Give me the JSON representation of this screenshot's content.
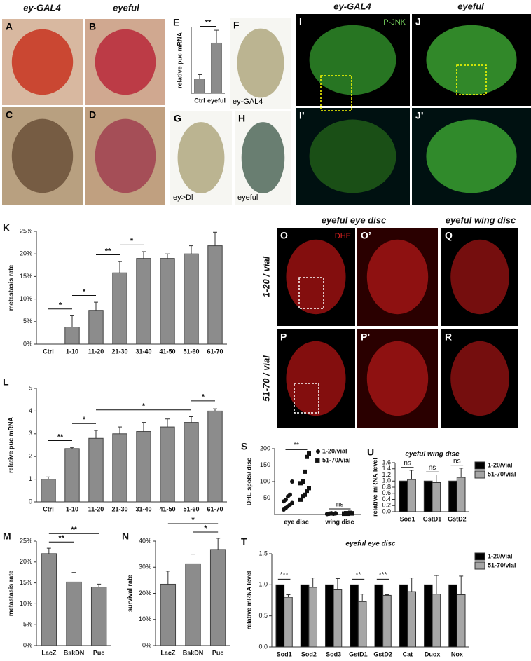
{
  "headers": [
    "ey-GAL4",
    "eyeful",
    "ey-GAL4",
    "eyeful",
    "eyeful eye disc",
    "eyeful wing disc"
  ],
  "row_labels": [
    "1-20 / vial",
    "51-70 / vial"
  ],
  "photo_panels": [
    {
      "label": "A"
    },
    {
      "label": "B"
    },
    {
      "label": "C"
    },
    {
      "label": "D"
    },
    {
      "label": "F",
      "caption": "ey-GAL4"
    },
    {
      "label": "G",
      "caption": "ey>Dl"
    },
    {
      "label": "H",
      "caption": "eyeful"
    },
    {
      "label": "I",
      "caption": "P-JNK"
    },
    {
      "label": "J"
    },
    {
      "label": "I’"
    },
    {
      "label": "J’"
    },
    {
      "label": "O",
      "caption": "DHE"
    },
    {
      "label": "O’"
    },
    {
      "label": "Q"
    },
    {
      "label": "P"
    },
    {
      "label": "P’"
    },
    {
      "label": "R"
    }
  ],
  "chart_data": [
    {
      "type": "bar",
      "label": "E",
      "ylabel": "relative puc mRNA",
      "categories": [
        "Ctrl",
        "eyeful"
      ],
      "values": [
        1,
        3.5
      ],
      "errors": [
        0.3,
        0.9
      ],
      "color": "#8c8c8c",
      "ylim": [
        0,
        4.6
      ],
      "significance": [
        {
          "from": "Ctrl",
          "to": "eyeful",
          "label": "**"
        }
      ]
    },
    {
      "type": "bar",
      "label": "K",
      "ylabel": "metastasis rate",
      "categories": [
        "Ctrl",
        "1-10",
        "11-20",
        "21-30",
        "31-40",
        "41-50",
        "51-60",
        "61-70"
      ],
      "values": [
        0,
        3.8,
        7.5,
        15.8,
        19,
        19,
        20,
        21.8
      ],
      "errors": [
        0,
        2.5,
        1.8,
        2.5,
        1.5,
        1,
        1.8,
        3
      ],
      "color": "#8c8c8c",
      "ylim": [
        0,
        25
      ],
      "yticks": [
        {
          "value": 0,
          "label": "0%"
        },
        {
          "value": 5,
          "label": "5%"
        },
        {
          "value": 10,
          "label": "10%"
        },
        {
          "value": 15,
          "label": "15%"
        },
        {
          "value": 20,
          "label": "20%"
        },
        {
          "value": 25,
          "label": "25%"
        }
      ],
      "significance": [
        {
          "from": "Ctrl",
          "to": "1-10",
          "label": "*"
        },
        {
          "from": "1-10",
          "to": "11-20",
          "label": "*"
        },
        {
          "from": "11-20",
          "to": "21-30",
          "label": "**"
        },
        {
          "from": "21-30",
          "to": "31-40",
          "label": "*"
        }
      ]
    },
    {
      "type": "bar",
      "label": "L",
      "ylabel": "relative puc mRNA",
      "categories": [
        "Ctrl",
        "1-10",
        "11-20",
        "21-30",
        "31-40",
        "41-50",
        "51-60",
        "61-70"
      ],
      "values": [
        1,
        2.35,
        2.8,
        3,
        3.1,
        3.3,
        3.5,
        4
      ],
      "errors": [
        0.1,
        0.05,
        0.35,
        0.3,
        0.4,
        0.35,
        0.25,
        0.1
      ],
      "color": "#8c8c8c",
      "ylim": [
        0,
        5
      ],
      "yticks": [
        0,
        1,
        2,
        3,
        4,
        5
      ],
      "significance": [
        {
          "from": "Ctrl",
          "to": "1-10",
          "label": "**"
        },
        {
          "from": "1-10",
          "to": "11-20",
          "label": "*"
        },
        {
          "from": "11-20",
          "to": "51-60",
          "label": "*"
        },
        {
          "from": "51-60",
          "to": "61-70",
          "label": "*"
        }
      ]
    },
    {
      "type": "bar",
      "label": "M",
      "ylabel": "metastasis rate",
      "categories": [
        "LacZ",
        "BskDN",
        "Puc"
      ],
      "values": [
        22,
        15.2,
        14
      ],
      "errors": [
        1.3,
        2.3,
        0.7
      ],
      "color": "#8c8c8c",
      "ylim": [
        0,
        25
      ],
      "yticks": [
        {
          "value": 0,
          "label": "0%"
        },
        {
          "value": 5,
          "label": "5%"
        },
        {
          "value": 10,
          "label": "10%"
        },
        {
          "value": 15,
          "label": "15%"
        },
        {
          "value": 20,
          "label": "20%"
        },
        {
          "value": 25,
          "label": "25%"
        }
      ],
      "significance": [
        {
          "from": "LacZ",
          "to": "BskDN",
          "label": "**"
        },
        {
          "from": "LacZ",
          "to": "Puc",
          "label": "**"
        }
      ]
    },
    {
      "type": "bar",
      "label": "N",
      "ylabel": "survival rate",
      "categories": [
        "LacZ",
        "BskDN",
        "Puc"
      ],
      "values": [
        23.5,
        31.3,
        36.8
      ],
      "errors": [
        5,
        3.7,
        4.3
      ],
      "color": "#8c8c8c",
      "ylim": [
        0,
        40
      ],
      "yticks": [
        {
          "value": 0,
          "label": "0%"
        },
        {
          "value": 10,
          "label": "10%"
        },
        {
          "value": 20,
          "label": "20%"
        },
        {
          "value": 30,
          "label": "30%"
        },
        {
          "value": 40,
          "label": "40%"
        }
      ],
      "significance": [
        {
          "from": "BskDN",
          "to": "Puc",
          "label": "*"
        },
        {
          "from": "LacZ",
          "to": "Puc",
          "label": "*"
        }
      ]
    },
    {
      "type": "strip",
      "label": "S",
      "ylabel": "DHE spots/ disc",
      "categories": [
        "eye disc",
        "wing disc"
      ],
      "ylim": [
        0,
        200
      ],
      "yticks": [
        50,
        100,
        150,
        200
      ],
      "series": [
        {
          "name": "1-20/vial",
          "color": "#111111",
          "marker": "circle",
          "values": [
            [
              15,
              20,
              25,
              30,
              35,
              40,
              45,
              55,
              60,
              100
            ],
            [
              2,
              3,
              4,
              2,
              3,
              1,
              2,
              3,
              2,
              4
            ]
          ]
        },
        {
          "name": "51-70/vial",
          "color": "#111111",
          "marker": "square",
          "values": [
            [
              45,
              55,
              60,
              70,
              80,
              95,
              100,
              130,
              175,
              185
            ],
            [
              3,
              4,
              2,
              5,
              3,
              2,
              4,
              3,
              5,
              4
            ]
          ]
        }
      ],
      "significance": [
        {
          "category": "eye disc",
          "label": "**"
        },
        {
          "category": "wing disc",
          "label": "ns"
        }
      ]
    },
    {
      "type": "grouped_bar",
      "label": "U",
      "title": "eyeful wing disc",
      "ylabel": "relative mRNA level",
      "categories": [
        "Sod1",
        "GstD1",
        "GstD2"
      ],
      "ylim": [
        0,
        1.6
      ],
      "yticks": [
        {
          "value": 0,
          "label": "0.0"
        },
        {
          "value": 0.2,
          "label": "0.2"
        },
        {
          "value": 0.4,
          "label": "0.4"
        },
        {
          "value": 0.6,
          "label": "0.6"
        },
        {
          "value": 0.8,
          "label": "0.8"
        },
        {
          "value": 1,
          "label": "1.0"
        },
        {
          "value": 1.2,
          "label": "1.2"
        },
        {
          "value": 1.4,
          "label": "1.4"
        },
        {
          "value": 1.6,
          "label": "1.6"
        }
      ],
      "series": [
        {
          "name": "1-20/vial",
          "color": "#000000",
          "values": [
            1,
            1,
            1
          ]
        },
        {
          "name": "51-70/vial",
          "color": "#a6a6a6",
          "values": [
            1.05,
            0.95,
            1.12
          ],
          "errors": [
            0.3,
            0.25,
            0.3
          ]
        }
      ],
      "significance": [
        {
          "category": "Sod1",
          "label": "ns"
        },
        {
          "category": "GstD1",
          "label": "ns"
        },
        {
          "category": "GstD2",
          "label": "ns"
        }
      ]
    },
    {
      "type": "grouped_bar",
      "label": "T",
      "title": "eyeful eye disc",
      "ylabel": "relative mRNA level",
      "categories": [
        "Sod1",
        "Sod2",
        "Sod3",
        "GstD1",
        "GstD2",
        "Cat",
        "Duox",
        "Nox"
      ],
      "ylim": [
        0,
        1.5
      ],
      "yticks": [
        {
          "value": 0,
          "label": "0.0"
        },
        {
          "value": 0.5,
          "label": "0.5"
        },
        {
          "value": 1,
          "label": "1.0"
        },
        {
          "value": 1.5,
          "label": "1.5"
        }
      ],
      "series": [
        {
          "name": "1-20/vial",
          "color": "#000000",
          "values": [
            1,
            1,
            1,
            1,
            1,
            1,
            1,
            1
          ]
        },
        {
          "name": "51-70/vial",
          "color": "#a6a6a6",
          "values": [
            0.8,
            0.96,
            0.93,
            0.73,
            0.83,
            0.89,
            0.85,
            0.84
          ],
          "errors": [
            0.04,
            0.15,
            0.17,
            0.12,
            0.01,
            0.22,
            0.3,
            0.3
          ]
        }
      ],
      "significance": [
        {
          "category": "Sod1",
          "label": "***"
        },
        {
          "category": "GstD1",
          "label": "**"
        },
        {
          "category": "GstD2",
          "label": "***"
        }
      ]
    }
  ]
}
